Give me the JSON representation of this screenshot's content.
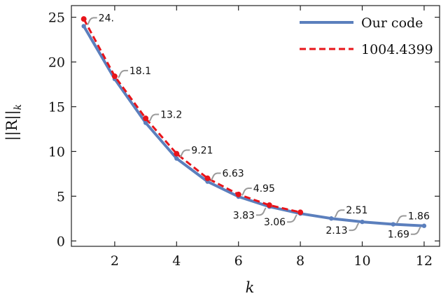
{
  "chart_data": {
    "type": "line",
    "xlabel": "k",
    "ylabel": "||R||_k",
    "xlim": [
      0.6,
      12.5
    ],
    "ylim": [
      -0.6,
      26.3
    ],
    "xticks": [
      2,
      4,
      6,
      8,
      10,
      12
    ],
    "yticks": [
      0,
      5,
      10,
      15,
      20,
      25
    ],
    "grid": false,
    "legend_position": "top-right",
    "series": [
      {
        "name": "Our code",
        "color": "#5b7fbd",
        "style": "solid",
        "x": [
          1,
          2,
          3,
          4,
          5,
          6,
          7,
          8,
          9,
          10,
          11,
          12
        ],
        "y": [
          24.0,
          18.1,
          13.2,
          9.21,
          6.63,
          4.95,
          3.83,
          3.06,
          2.51,
          2.13,
          1.86,
          1.69
        ]
      },
      {
        "name": "1004.4399",
        "color": "#e8141a",
        "style": "dashed",
        "x": [
          1,
          2,
          3,
          4,
          5,
          6,
          7,
          8
        ],
        "y": [
          24.8,
          18.4,
          13.7,
          9.75,
          7.0,
          5.2,
          4.0,
          3.2
        ]
      }
    ],
    "annotations": [
      {
        "text": "24.",
        "x": 1,
        "y": 24.0,
        "side": "above"
      },
      {
        "text": "18.1",
        "x": 2,
        "y": 18.1,
        "side": "above"
      },
      {
        "text": "13.2",
        "x": 3,
        "y": 13.2,
        "side": "above"
      },
      {
        "text": "9.21",
        "x": 4,
        "y": 9.21,
        "side": "above"
      },
      {
        "text": "6.63",
        "x": 5,
        "y": 6.63,
        "side": "above"
      },
      {
        "text": "4.95",
        "x": 6,
        "y": 4.95,
        "side": "above"
      },
      {
        "text": "3.83",
        "x": 7,
        "y": 3.83,
        "side": "below"
      },
      {
        "text": "3.06",
        "x": 8,
        "y": 3.06,
        "side": "below"
      },
      {
        "text": "2.51",
        "x": 9,
        "y": 2.51,
        "side": "above"
      },
      {
        "text": "2.13",
        "x": 10,
        "y": 2.13,
        "side": "below"
      },
      {
        "text": "1.86",
        "x": 11,
        "y": 1.86,
        "side": "above"
      },
      {
        "text": "1.69",
        "x": 12,
        "y": 1.69,
        "side": "below"
      }
    ]
  }
}
